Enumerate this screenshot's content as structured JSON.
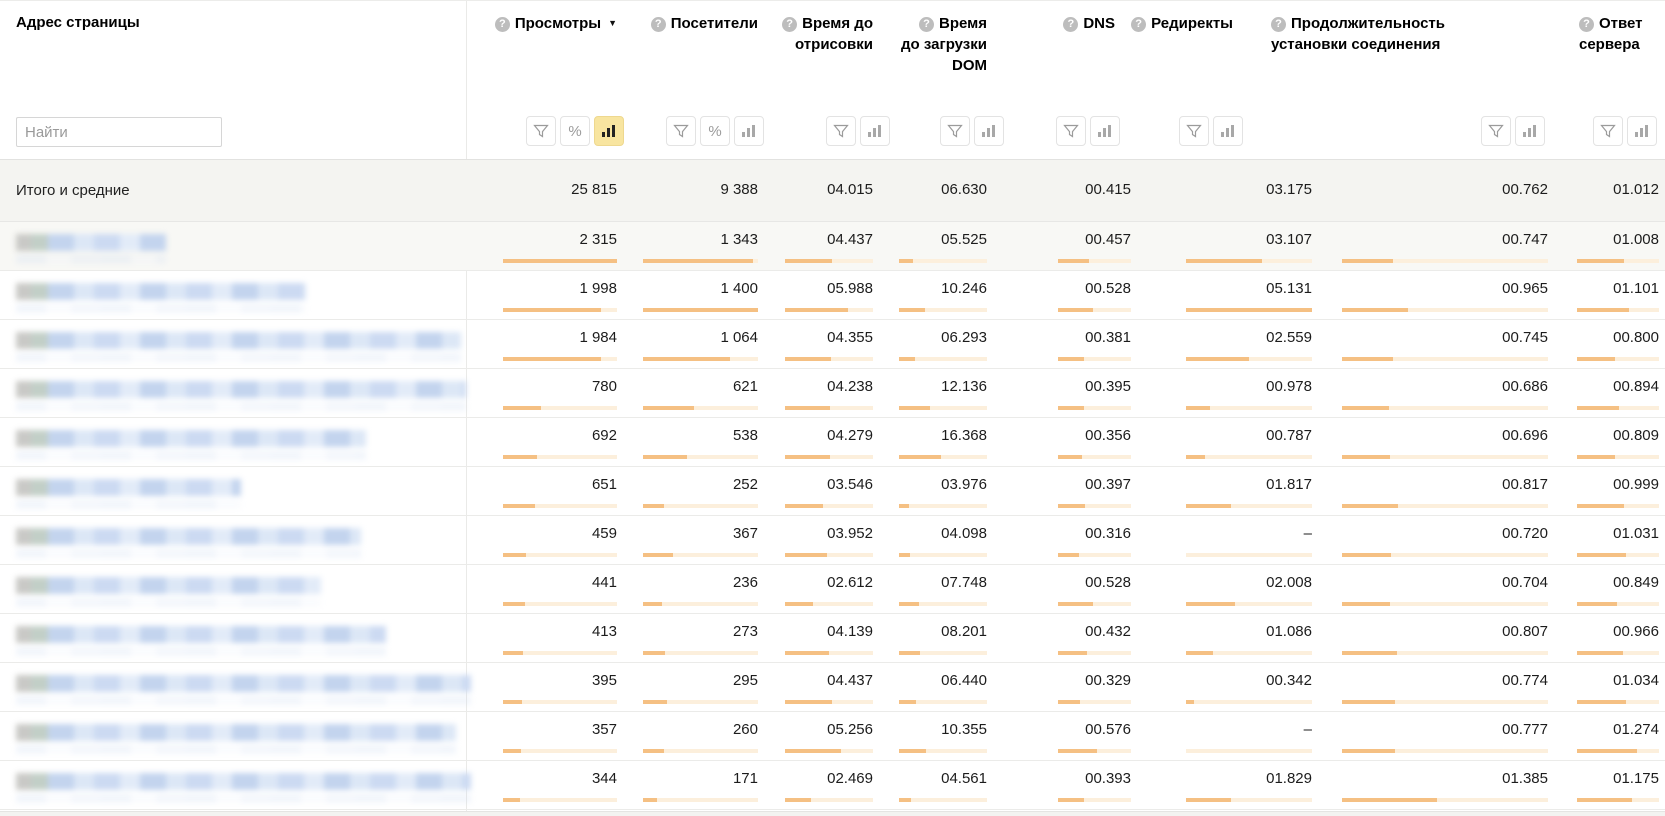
{
  "table": {
    "address_label": "Адрес страницы",
    "search_placeholder": "Найти",
    "icons": {
      "help": "?",
      "sort_desc": "▼",
      "percent": "%"
    },
    "columns": [
      {
        "label": "Просмотры",
        "filters": [
          "filter",
          "percent",
          "chart"
        ],
        "active_filter": "chart",
        "sorted": "desc"
      },
      {
        "label": "Посетители",
        "filters": [
          "filter",
          "percent",
          "chart"
        ]
      },
      {
        "label": "Время до отрисовки",
        "filters": [
          "filter",
          "chart"
        ]
      },
      {
        "label": "Время до загрузки DOM",
        "filters": [
          "filter",
          "chart"
        ]
      },
      {
        "label": "DNS",
        "filters": [
          "filter",
          "chart"
        ]
      },
      {
        "label": "Редиректы",
        "filters": [
          "filter",
          "chart"
        ]
      },
      {
        "label": "Продолжительность установки соединения",
        "filters": [
          "filter",
          "chart"
        ]
      },
      {
        "label": "Ответ сервера",
        "filters": [
          "filter",
          "chart"
        ]
      }
    ],
    "totals": {
      "label": "Итого и средние",
      "cells": [
        {
          "v": "25 815"
        },
        {
          "v": "9 388"
        },
        {
          "v": "04.015"
        },
        {
          "v": "06.630"
        },
        {
          "v": "00.415"
        },
        {
          "v": "03.175"
        },
        {
          "v": "00.762"
        },
        {
          "v": "01.012"
        }
      ]
    },
    "rows": [
      {
        "addr_w": 150,
        "cells": [
          {
            "v": "2 315",
            "p": 100
          },
          {
            "v": "1 343",
            "p": 95.9
          },
          {
            "v": "04.437",
            "p": 53.5
          },
          {
            "v": "05.525",
            "p": 16.3
          },
          {
            "v": "00.457",
            "p": 41.9
          },
          {
            "v": "03.107",
            "p": 60.6
          },
          {
            "v": "00.747",
            "p": 24.9
          },
          {
            "v": "01.008",
            "p": 57.9
          }
        ]
      },
      {
        "addr_w": 290,
        "cells": [
          {
            "v": "1 998",
            "p": 86.3
          },
          {
            "v": "1 400",
            "p": 100
          },
          {
            "v": "05.988",
            "p": 72.1
          },
          {
            "v": "10.246",
            "p": 30.1
          },
          {
            "v": "00.528",
            "p": 48.4
          },
          {
            "v": "05.131",
            "p": 100
          },
          {
            "v": "00.965",
            "p": 32.2
          },
          {
            "v": "01.101",
            "p": 63.3
          }
        ]
      },
      {
        "addr_w": 445,
        "cells": [
          {
            "v": "1 984",
            "p": 85.7
          },
          {
            "v": "1 064",
            "p": 76
          },
          {
            "v": "04.355",
            "p": 52.5
          },
          {
            "v": "06.293",
            "p": 18.5
          },
          {
            "v": "00.381",
            "p": 35
          },
          {
            "v": "02.559",
            "p": 49.9
          },
          {
            "v": "00.745",
            "p": 24.8
          },
          {
            "v": "00.800",
            "p": 46
          }
        ]
      },
      {
        "addr_w": 450,
        "cells": [
          {
            "v": "780",
            "p": 33.7
          },
          {
            "v": "621",
            "p": 44.4
          },
          {
            "v": "04.238",
            "p": 51.1
          },
          {
            "v": "12.136",
            "p": 35.7
          },
          {
            "v": "00.395",
            "p": 36.2
          },
          {
            "v": "00.978",
            "p": 19.1
          },
          {
            "v": "00.686",
            "p": 22.9
          },
          {
            "v": "00.894",
            "p": 51.4
          }
        ]
      },
      {
        "addr_w": 350,
        "cells": [
          {
            "v": "692",
            "p": 29.9
          },
          {
            "v": "538",
            "p": 38.4
          },
          {
            "v": "04.279",
            "p": 51.6
          },
          {
            "v": "16.368",
            "p": 48.1
          },
          {
            "v": "00.356",
            "p": 32.7
          },
          {
            "v": "00.787",
            "p": 15.3
          },
          {
            "v": "00.696",
            "p": 23.2
          },
          {
            "v": "00.809",
            "p": 46.5
          }
        ]
      },
      {
        "addr_w": 225,
        "cells": [
          {
            "v": "651",
            "p": 28.1
          },
          {
            "v": "252",
            "p": 18
          },
          {
            "v": "03.546",
            "p": 42.7
          },
          {
            "v": "03.976",
            "p": 11.7
          },
          {
            "v": "00.397",
            "p": 36.4
          },
          {
            "v": "01.817",
            "p": 35.4
          },
          {
            "v": "00.817",
            "p": 27.2
          },
          {
            "v": "00.999",
            "p": 57.4
          }
        ]
      },
      {
        "addr_w": 345,
        "cells": [
          {
            "v": "459",
            "p": 19.8
          },
          {
            "v": "367",
            "p": 26.2
          },
          {
            "v": "03.952",
            "p": 47.6
          },
          {
            "v": "04.098",
            "p": 12.1
          },
          {
            "v": "00.316",
            "p": 29
          },
          {
            "v": "–",
            "p": 0
          },
          {
            "v": "00.720",
            "p": 24
          },
          {
            "v": "01.031",
            "p": 59.3
          }
        ]
      },
      {
        "addr_w": 305,
        "cells": [
          {
            "v": "441",
            "p": 19
          },
          {
            "v": "236",
            "p": 16.9
          },
          {
            "v": "02.612",
            "p": 31.5
          },
          {
            "v": "07.748",
            "p": 22.8
          },
          {
            "v": "00.528",
            "p": 48.4
          },
          {
            "v": "02.008",
            "p": 39.1
          },
          {
            "v": "00.704",
            "p": 23.5
          },
          {
            "v": "00.849",
            "p": 48.8
          }
        ]
      },
      {
        "addr_w": 370,
        "cells": [
          {
            "v": "413",
            "p": 17.8
          },
          {
            "v": "273",
            "p": 19.5
          },
          {
            "v": "04.139",
            "p": 49.9
          },
          {
            "v": "08.201",
            "p": 24.1
          },
          {
            "v": "00.432",
            "p": 39.6
          },
          {
            "v": "01.086",
            "p": 21.2
          },
          {
            "v": "00.807",
            "p": 26.9
          },
          {
            "v": "00.966",
            "p": 55.5
          }
        ]
      },
      {
        "addr_w": 455,
        "cells": [
          {
            "v": "395",
            "p": 17.1
          },
          {
            "v": "295",
            "p": 21.1
          },
          {
            "v": "04.437",
            "p": 53.5
          },
          {
            "v": "06.440",
            "p": 18.9
          },
          {
            "v": "00.329",
            "p": 30.2
          },
          {
            "v": "00.342",
            "p": 6.7
          },
          {
            "v": "00.774",
            "p": 25.8
          },
          {
            "v": "01.034",
            "p": 59.4
          }
        ]
      },
      {
        "addr_w": 440,
        "cells": [
          {
            "v": "357",
            "p": 15.4
          },
          {
            "v": "260",
            "p": 18.6
          },
          {
            "v": "05.256",
            "p": 63.3
          },
          {
            "v": "10.355",
            "p": 30.5
          },
          {
            "v": "00.576",
            "p": 52.8
          },
          {
            "v": "–",
            "p": 0
          },
          {
            "v": "00.777",
            "p": 25.9
          },
          {
            "v": "01.274",
            "p": 73.2
          }
        ]
      },
      {
        "addr_w": 455,
        "cells": [
          {
            "v": "344",
            "p": 14.9
          },
          {
            "v": "171",
            "p": 12.2
          },
          {
            "v": "02.469",
            "p": 29.7
          },
          {
            "v": "04.561",
            "p": 13.4
          },
          {
            "v": "00.393",
            "p": 36.1
          },
          {
            "v": "01.829",
            "p": 35.6
          },
          {
            "v": "01.385",
            "p": 46.2
          },
          {
            "v": "01.175",
            "p": 67.5
          }
        ]
      }
    ]
  }
}
